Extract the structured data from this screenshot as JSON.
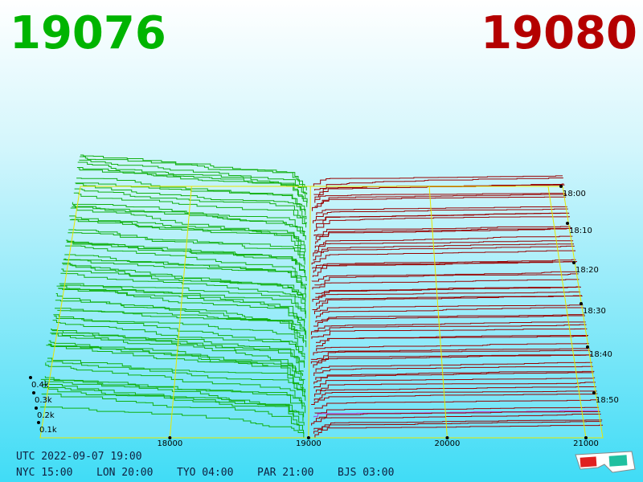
{
  "best_bid": "19076",
  "best_ask": "19080",
  "price_axis": [
    "18000",
    "19000",
    "20000",
    "21000"
  ],
  "depth_axis": [
    "0.4k",
    "0.3k",
    "0.2k",
    "0.1k"
  ],
  "time_axis": [
    "18:00",
    "18:10",
    "18:20",
    "18:30",
    "18:40",
    "18:50"
  ],
  "footer": {
    "utc": "UTC 2022-09-07 19:00",
    "clocks": [
      "NYC 15:00",
      "LON 20:00",
      "TYO 04:00",
      "PAR 21:00",
      "BJS 03:00"
    ]
  }
}
